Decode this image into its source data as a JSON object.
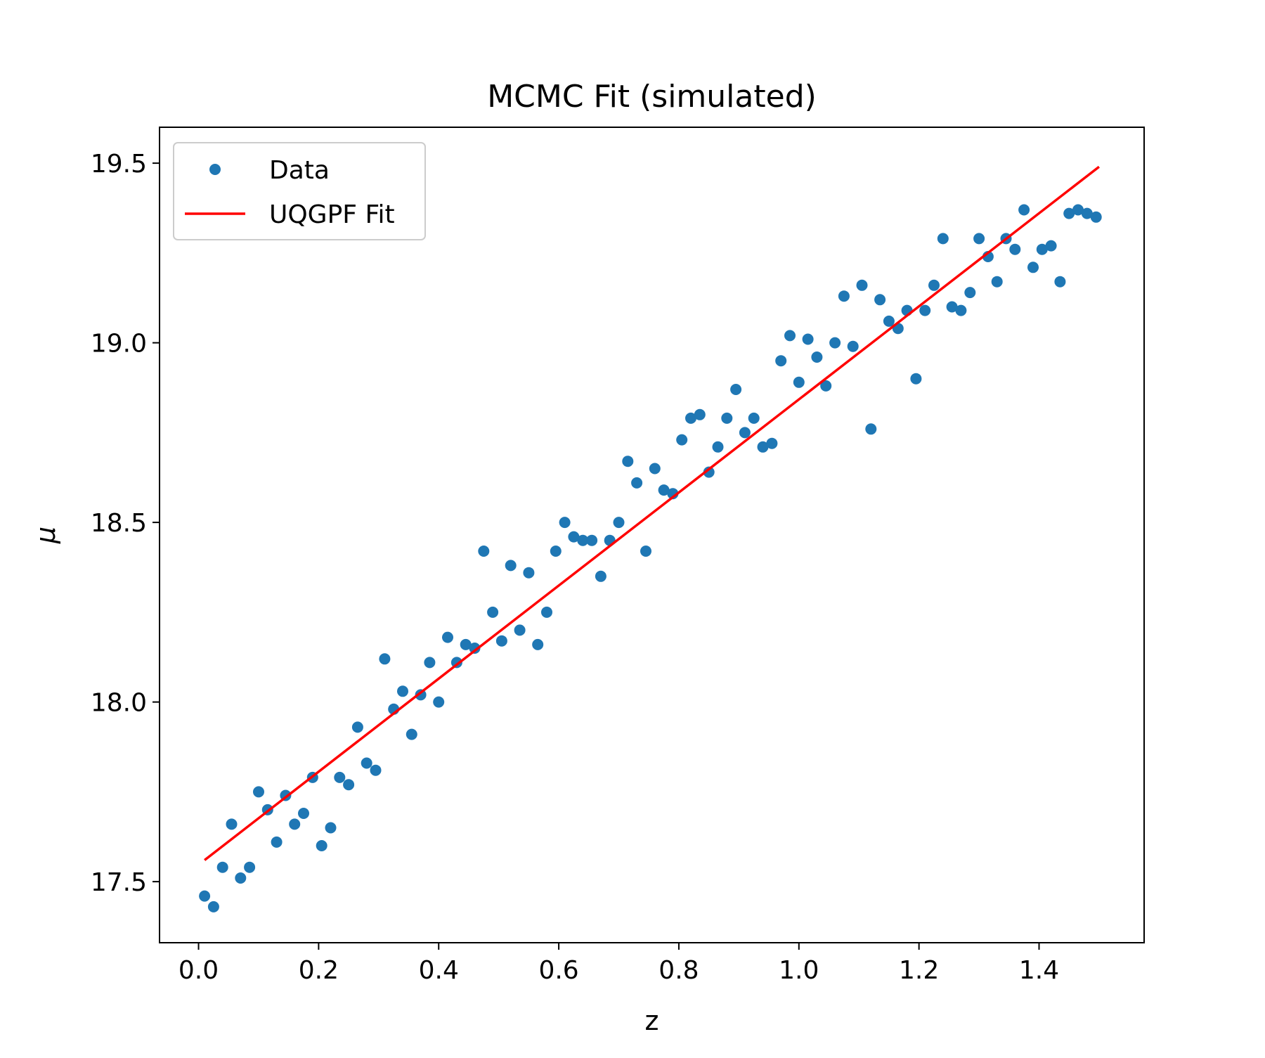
{
  "chart_data": {
    "type": "scatter",
    "title": "MCMC Fit (simulated)",
    "xlabel": "z",
    "ylabel": "μ",
    "xlim": [
      -0.065,
      1.575
    ],
    "ylim": [
      17.33,
      19.6
    ],
    "xticks": [
      0.0,
      0.2,
      0.4,
      0.6,
      0.8,
      1.0,
      1.2,
      1.4
    ],
    "xtick_labels": [
      "0.0",
      "0.2",
      "0.4",
      "0.6",
      "0.8",
      "1.0",
      "1.2",
      "1.4"
    ],
    "yticks": [
      17.5,
      18.0,
      18.5,
      19.0,
      19.5
    ],
    "ytick_labels": [
      "17.5",
      "18.0",
      "18.5",
      "19.0",
      "19.5"
    ],
    "grid": false,
    "legend_position": "upper-left",
    "series": [
      {
        "name": "Data",
        "kind": "scatter",
        "color": "#1f77b4",
        "x": [
          0.01,
          0.025,
          0.04,
          0.055,
          0.07,
          0.085,
          0.1,
          0.115,
          0.13,
          0.145,
          0.16,
          0.175,
          0.19,
          0.205,
          0.22,
          0.235,
          0.25,
          0.265,
          0.28,
          0.295,
          0.31,
          0.325,
          0.34,
          0.355,
          0.37,
          0.385,
          0.4,
          0.415,
          0.43,
          0.445,
          0.46,
          0.475,
          0.49,
          0.505,
          0.52,
          0.535,
          0.55,
          0.565,
          0.58,
          0.595,
          0.61,
          0.625,
          0.64,
          0.655,
          0.67,
          0.685,
          0.7,
          0.715,
          0.73,
          0.745,
          0.76,
          0.775,
          0.79,
          0.805,
          0.82,
          0.835,
          0.85,
          0.865,
          0.88,
          0.895,
          0.91,
          0.925,
          0.94,
          0.955,
          0.97,
          0.985,
          1.0,
          1.015,
          1.03,
          1.045,
          1.06,
          1.075,
          1.09,
          1.105,
          1.12,
          1.135,
          1.15,
          1.165,
          1.18,
          1.195,
          1.21,
          1.225,
          1.24,
          1.255,
          1.27,
          1.285,
          1.3,
          1.315,
          1.33,
          1.345,
          1.36,
          1.375,
          1.39,
          1.405,
          1.42,
          1.435,
          1.45,
          1.465,
          1.48,
          1.495
        ],
        "y": [
          17.46,
          17.43,
          17.54,
          17.66,
          17.51,
          17.54,
          17.75,
          17.7,
          17.61,
          17.74,
          17.66,
          17.69,
          17.79,
          17.6,
          17.65,
          17.79,
          17.77,
          17.93,
          17.83,
          17.81,
          18.12,
          17.98,
          18.03,
          17.91,
          18.02,
          18.11,
          18.0,
          18.18,
          18.11,
          18.16,
          18.15,
          18.42,
          18.25,
          18.17,
          18.38,
          18.2,
          18.36,
          18.16,
          18.25,
          18.42,
          18.5,
          18.46,
          18.45,
          18.45,
          18.35,
          18.45,
          18.5,
          18.67,
          18.61,
          18.42,
          18.65,
          18.59,
          18.58,
          18.73,
          18.79,
          18.8,
          18.64,
          18.71,
          18.79,
          18.87,
          18.75,
          18.79,
          18.71,
          18.72,
          18.95,
          19.02,
          18.89,
          19.01,
          18.96,
          18.88,
          19.0,
          19.13,
          18.99,
          19.16,
          18.76,
          19.12,
          19.06,
          19.04,
          19.09,
          18.9,
          19.09,
          19.16,
          19.29,
          19.1,
          19.09,
          19.14,
          19.29,
          19.24,
          19.17,
          19.29,
          19.26,
          19.37,
          19.21,
          19.26,
          19.27,
          19.17,
          19.36,
          19.37,
          19.36,
          19.35
        ]
      },
      {
        "name": "UQGPF Fit",
        "kind": "line",
        "color": "#ff0000",
        "x": [
          0.01,
          1.5
        ],
        "y": [
          17.56,
          19.49
        ]
      }
    ]
  }
}
